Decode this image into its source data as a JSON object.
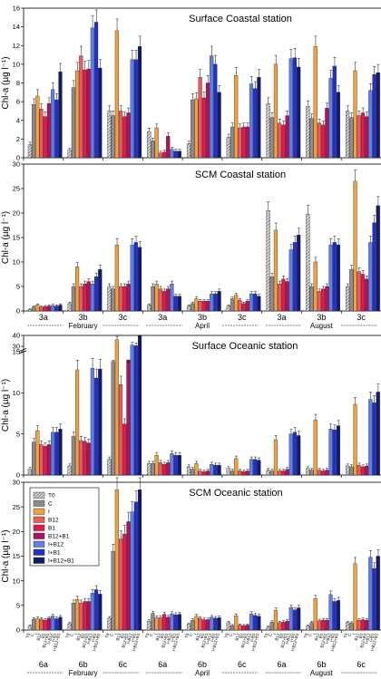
{
  "legend": {
    "items": [
      {
        "label": "T0",
        "fill": "#bdbdbd",
        "hatch": true
      },
      {
        "label": "C",
        "fill": "#8c8c8c",
        "hatch": false
      },
      {
        "label": "I",
        "fill": "#f2a03d",
        "hatch": false
      },
      {
        "label": "B12",
        "fill": "#ec5a5a",
        "hatch": false
      },
      {
        "label": "B1",
        "fill": "#e8174a",
        "hatch": false
      },
      {
        "label": "B12+B1",
        "fill": "#b0115a",
        "hatch": false
      },
      {
        "label": "I+B12",
        "fill": "#5f7fe8",
        "hatch": false
      },
      {
        "label": "I+B1",
        "fill": "#1f2fd0",
        "hatch": false
      },
      {
        "label": "I+B12+B1",
        "fill": "#121a70",
        "hatch": false
      }
    ]
  },
  "x_axis": {
    "categories": [
      "6a",
      "6b",
      "6c",
      "6a",
      "6b",
      "6c",
      "6a",
      "6b",
      "6c"
    ],
    "months": [
      "February",
      "April",
      "August"
    ],
    "treatment_labels": [
      "T0",
      "C",
      "I",
      "B12",
      "B1",
      "B12+B1",
      "I+B12",
      "I+B1",
      "I+B12+B1"
    ]
  },
  "chart_data": [
    {
      "type": "bar",
      "title": "Surface Coastal station",
      "ylabel": "Chl-a (µg l⁻¹)",
      "ylim": [
        0,
        16
      ],
      "yticks": [
        0,
        2,
        4,
        6,
        8,
        10,
        12,
        14,
        16
      ],
      "categories": [
        "3a",
        "3b",
        "3c",
        "3a",
        "3b",
        "3c",
        "3a",
        "3b",
        "3c"
      ],
      "category_labels_shown": false,
      "series_names": [
        "T0",
        "C",
        "I",
        "B12",
        "B1",
        "B12+B1",
        "I+B12",
        "I+B1",
        "I+B12+B1"
      ],
      "values": [
        [
          1.4,
          5.7,
          6.6,
          5.2,
          4.4,
          5.8,
          7.3,
          6.2,
          9.2
        ],
        [
          0.8,
          7.5,
          9.3,
          10.9,
          9.4,
          9.5,
          13.9,
          14.5,
          9.6
        ],
        [
          5.0,
          4.5,
          13.6,
          5.0,
          4.4,
          4.8,
          10.5,
          10.5,
          11.9
        ],
        [
          2.8,
          1.8,
          3.2,
          0.5,
          0.6,
          2.3,
          0.9,
          0.7,
          0.7
        ],
        [
          1.5,
          6.2,
          6.3,
          8.6,
          6.4,
          8.0,
          10.9,
          10.0,
          7.0
        ],
        [
          2.2,
          3.3,
          8.8,
          3.2,
          3.3,
          3.3,
          7.9,
          7.4,
          8.6
        ],
        [
          5.8,
          4.3,
          10.0,
          3.7,
          3.5,
          4.5,
          10.6,
          10.7,
          9.7
        ],
        [
          5.5,
          4.2,
          11.9,
          3.7,
          3.5,
          5.3,
          8.5,
          9.8,
          7.0
        ],
        [
          5.0,
          4.3,
          9.3,
          4.5,
          4.8,
          4.4,
          7.2,
          8.9,
          9.1
        ]
      ]
    },
    {
      "type": "bar",
      "title": "SCM Coastal station",
      "ylabel": "Chl-a (µg l⁻¹)",
      "ylim": [
        0,
        30
      ],
      "yticks": [
        0,
        5,
        10,
        15,
        20,
        25,
        30
      ],
      "categories": [
        "3a",
        "3b",
        "3c",
        "3a",
        "3b",
        "3c",
        "3a",
        "3b",
        "3c"
      ],
      "category_labels_shown": true,
      "months_shown": true,
      "series_names": [
        "T0",
        "C",
        "I",
        "B12",
        "B1",
        "B12+B1",
        "I+B12",
        "I+B1",
        "I+B12+B1"
      ],
      "values": [
        [
          0.3,
          0.8,
          1.2,
          0.8,
          0.9,
          1.0,
          1.1,
          1.0,
          1.2
        ],
        [
          1.5,
          5.0,
          9.0,
          5.0,
          5.5,
          6.0,
          5.5,
          7.0,
          8.5
        ],
        [
          5.0,
          4.5,
          13.5,
          5.0,
          5.0,
          5.5,
          13.5,
          14.0,
          13.0
        ],
        [
          1.2,
          5.0,
          5.5,
          4.5,
          4.0,
          4.5,
          5.5,
          3.0,
          3.0
        ],
        [
          1.0,
          1.5,
          2.5,
          2.0,
          2.0,
          2.0,
          3.5,
          3.5,
          4.0
        ],
        [
          1.0,
          2.5,
          3.2,
          2.2,
          1.5,
          2.0,
          3.5,
          3.5,
          3.0
        ],
        [
          20.5,
          7.0,
          16.5,
          5.5,
          6.5,
          6.0,
          12.5,
          14.0,
          15.5
        ],
        [
          19.8,
          5.0,
          10.0,
          4.0,
          4.5,
          5.0,
          13.5,
          14.0,
          13.5
        ],
        [
          5.0,
          8.5,
          26.5,
          8.0,
          7.5,
          6.5,
          14.0,
          18.0,
          21.5
        ]
      ]
    },
    {
      "type": "bar",
      "title": "Surface Oceanic station",
      "ylabel": "Chl-a (µg l⁻¹)",
      "ylim": [
        0,
        40
      ],
      "axis_break": {
        "lower_max": 15,
        "upper_min": 30,
        "upper_max": 40
      },
      "yticks": [
        0,
        5,
        10,
        15,
        30,
        40
      ],
      "categories": [
        "6a",
        "6b",
        "6c",
        "6a",
        "6b",
        "6c",
        "6a",
        "6b",
        "6c"
      ],
      "category_labels_shown": false,
      "series_names": [
        "T0",
        "C",
        "I",
        "B12",
        "B1",
        "B12+B1",
        "I+B12",
        "I+B1",
        "I+B12+B1"
      ],
      "values": [
        [
          0.7,
          4.0,
          5.4,
          3.7,
          3.5,
          3.7,
          5.2,
          5.2,
          5.6
        ],
        [
          1.1,
          4.7,
          12.8,
          4.2,
          4.1,
          3.9,
          13.0,
          11.8,
          12.9
        ],
        [
          1.9,
          15.9,
          36.0,
          11.0,
          6.2,
          14.0,
          31.0,
          30.5,
          40.0
        ],
        [
          1.4,
          1.4,
          2.4,
          1.5,
          1.3,
          1.5,
          2.6,
          2.4,
          2.4
        ],
        [
          1.0,
          0.7,
          1.4,
          0.5,
          0.4,
          0.5,
          1.3,
          1.2,
          1.2
        ],
        [
          0.8,
          0.5,
          2.0,
          0.5,
          0.4,
          0.5,
          1.9,
          1.9,
          1.8
        ],
        [
          0.6,
          0.5,
          4.3,
          0.5,
          0.5,
          0.7,
          5.0,
          5.2,
          4.8
        ],
        [
          0.8,
          0.6,
          6.7,
          0.6,
          0.5,
          0.6,
          5.6,
          5.5,
          6.0
        ],
        [
          1.1,
          1.0,
          8.6,
          1.2,
          1.0,
          1.1,
          9.2,
          8.8,
          10.1
        ]
      ]
    },
    {
      "type": "bar",
      "title": "SCM Oceanic station",
      "ylabel": "Chl-a (µg l⁻¹)",
      "ylim": [
        0,
        30
      ],
      "axis_break": {
        "lower_max": 20,
        "upper_min": 20,
        "upper_max": 30
      },
      "yticks": [
        0,
        5,
        10,
        15,
        20,
        25,
        30
      ],
      "categories": [
        "6a",
        "6b",
        "6c",
        "6a",
        "6b",
        "6c",
        "6a",
        "6b",
        "6c"
      ],
      "category_labels_shown": true,
      "months_shown": true,
      "series_names": [
        "T0",
        "C",
        "I",
        "B12",
        "B1",
        "B12+B1",
        "I+B12",
        "I+B1",
        "I+B12+B1"
      ],
      "values": [
        [
          0.8,
          2.2,
          2.3,
          2.2,
          2.0,
          2.4,
          2.8,
          2.3,
          2.6
        ],
        [
          1.3,
          5.5,
          6.2,
          5.5,
          5.8,
          5.8,
          7.5,
          8.2,
          7.3
        ],
        [
          2.4,
          16.0,
          28.5,
          18.5,
          19.5,
          22.0,
          24.0,
          26.0,
          28.5
        ],
        [
          1.8,
          3.4,
          2.5,
          2.5,
          3.2,
          2.6,
          3.3,
          3.1,
          3.2
        ],
        [
          1.2,
          2.0,
          2.8,
          2.4,
          2.1,
          2.1,
          2.6,
          2.4,
          2.5
        ],
        [
          1.5,
          0.9,
          2.9,
          1.0,
          0.9,
          1.0,
          3.3,
          3.0,
          2.8
        ],
        [
          0.6,
          1.6,
          4.0,
          1.5,
          1.6,
          1.8,
          4.6,
          4.1,
          4.5
        ],
        [
          0.8,
          1.5,
          6.4,
          1.9,
          2.0,
          2.0,
          7.2,
          5.8,
          6.0
        ],
        [
          1.5,
          1.4,
          13.5,
          2.0,
          2.1,
          2.0,
          14.8,
          12.5,
          15.0
        ]
      ]
    }
  ]
}
